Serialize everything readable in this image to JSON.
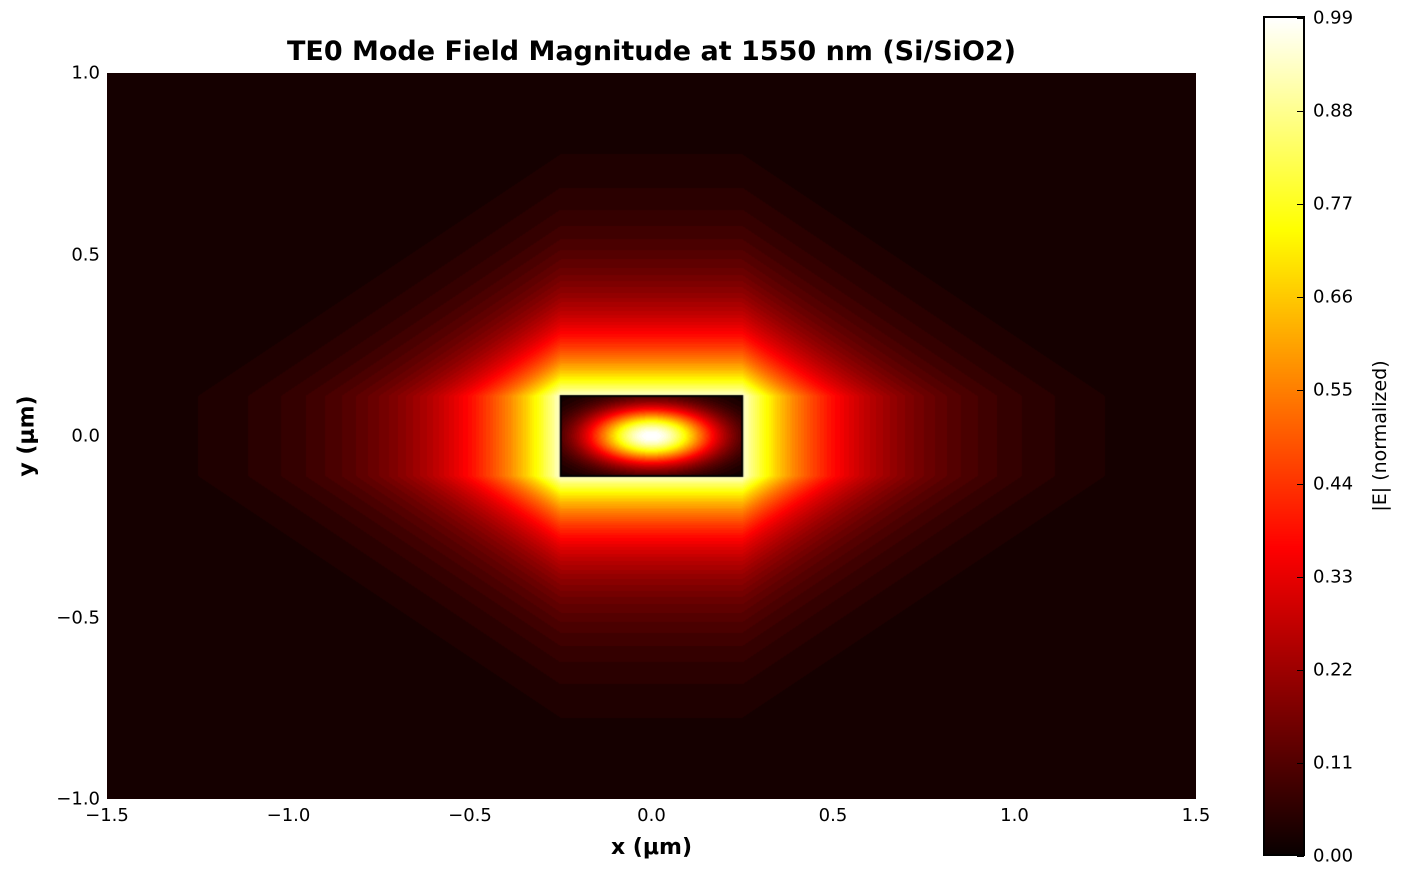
{
  "chart_data": {
    "type": "heatmap",
    "title": "TE0 Mode Field Magnitude at 1550 nm (Si/SiO2)",
    "xlabel": "x (μm)",
    "ylabel": "y (μm)",
    "xlim": [
      -1.5,
      1.5
    ],
    "ylim": [
      -1.0,
      1.0
    ],
    "xticks": [
      "−1.5",
      "−1.0",
      "−0.5",
      "0.0",
      "0.5",
      "1.0",
      "1.5"
    ],
    "xtick_values": [
      -1.5,
      -1.0,
      -0.5,
      0.0,
      0.5,
      1.0,
      1.5
    ],
    "yticks": [
      "1.0",
      "0.5",
      "0.0",
      "−0.5",
      "−1.0"
    ],
    "ytick_values": [
      1.0,
      0.5,
      0.0,
      -0.5,
      -1.0
    ],
    "colormap": "hot",
    "colorbar": {
      "label": "|E| (normalized)",
      "range": [
        0.0,
        0.99
      ],
      "ticks": [
        "0.00",
        "0.11",
        "0.22",
        "0.33",
        "0.44",
        "0.55",
        "0.66",
        "0.77",
        "0.88",
        "0.99"
      ],
      "tick_values": [
        0.0,
        0.11,
        0.22,
        0.33,
        0.44,
        0.55,
        0.66,
        0.77,
        0.88,
        0.99
      ]
    },
    "waveguide_core": {
      "x": [
        -0.25,
        0.25
      ],
      "y": [
        -0.11,
        0.11
      ],
      "outline_color": "#000000"
    },
    "field_model": {
      "peak": 1.0,
      "peak_location": [
        0.0,
        0.0
      ],
      "core_edge_value": 0.05,
      "cladding_surface_value": 0.95,
      "decay_length_x_um": 0.27,
      "decay_length_y_um": 0.18,
      "background": 0.02
    },
    "grid": false,
    "legend": null
  }
}
